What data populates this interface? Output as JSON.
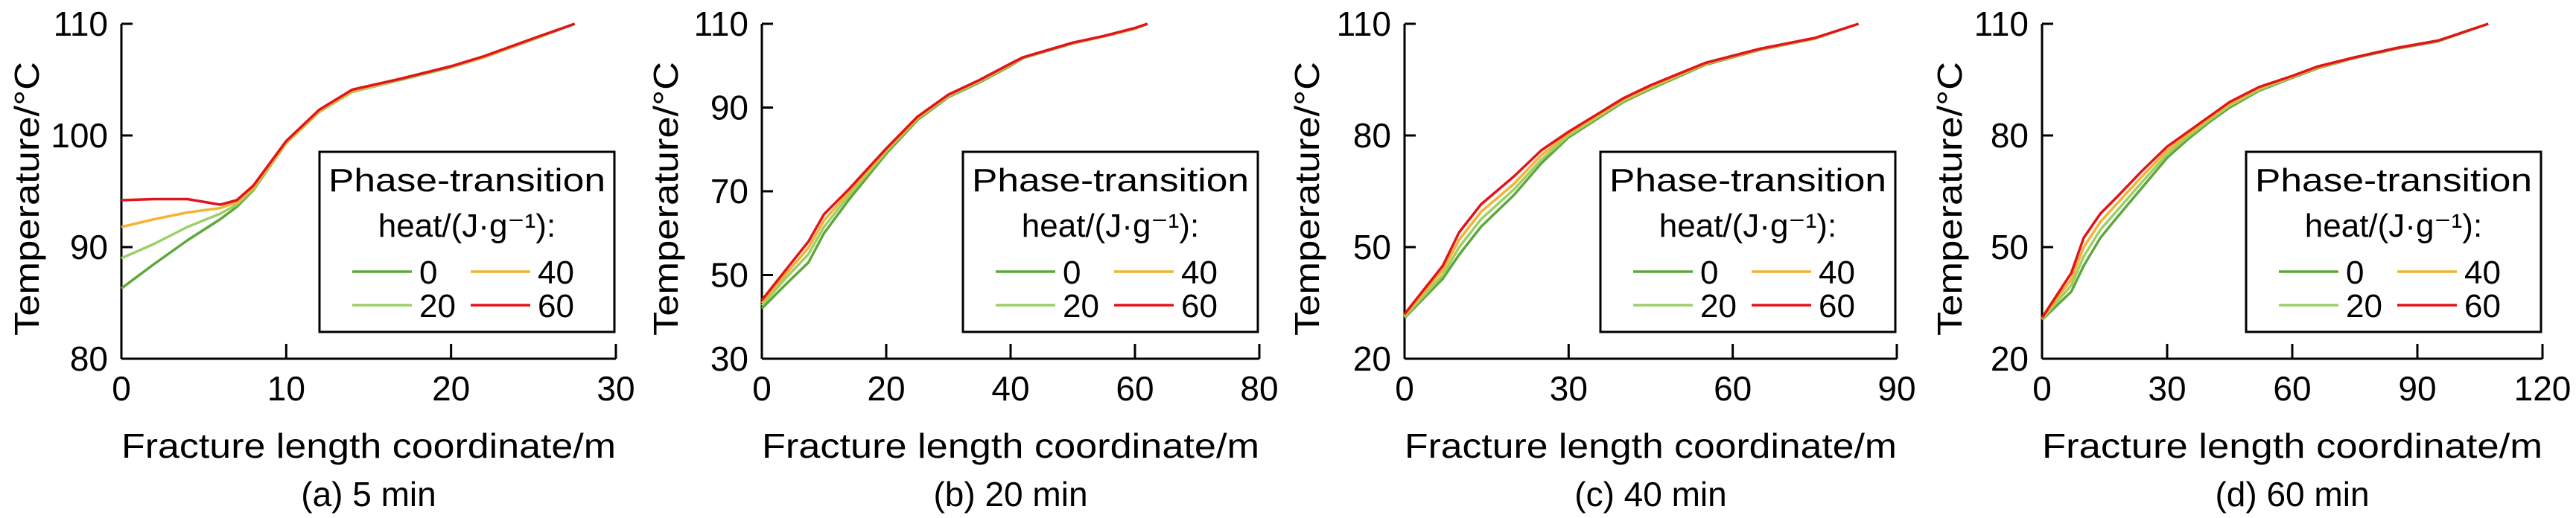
{
  "chart_data": {
    "type": "line",
    "ylabel": "Temperature/°C",
    "xlabel": "Fracture length coordinate/m",
    "legend": {
      "title_line1": "Phase-transition",
      "title_line2": "heat/(J·g⁻¹):",
      "placement": "lower-right",
      "entries": [
        "0",
        "40",
        "20",
        "60"
      ]
    },
    "series_names": [
      "0",
      "20",
      "40",
      "60"
    ],
    "colors": {
      "0": "#5ea83b",
      "20": "#9ccf69",
      "40": "#f4b332",
      "60": "#e1141c"
    },
    "panels": [
      {
        "caption": "(a) 5 min",
        "xlim": [
          0,
          30
        ],
        "ylim": [
          80,
          110
        ],
        "xticks": [
          0,
          10,
          20,
          30
        ],
        "yticks": [
          80,
          90,
          100,
          110
        ],
        "x": [
          0,
          2,
          4,
          6,
          7,
          8,
          10,
          12,
          14,
          17,
          20,
          22,
          25,
          27.5
        ],
        "series": [
          {
            "name": "0",
            "values": [
              86.3,
              88.5,
              90.6,
              92.5,
              93.6,
              95.1,
              99.3,
              102.1,
              103.9,
              105,
              106.1,
              107,
              108.6,
              110
            ]
          },
          {
            "name": "20",
            "values": [
              89,
              90.3,
              91.8,
              93,
              93.8,
              95.2,
              99.3,
              102.1,
              103.9,
              105,
              106.1,
              107,
              108.6,
              110
            ]
          },
          {
            "name": "40",
            "values": [
              91.8,
              92.5,
              93.1,
              93.5,
              94.0,
              95.3,
              99.4,
              102.2,
              104,
              105.1,
              106.2,
              107,
              108.7,
              110
            ]
          },
          {
            "name": "60",
            "values": [
              94.2,
              94.3,
              94.3,
              93.8,
              94.2,
              95.5,
              99.5,
              102.3,
              104.1,
              105.1,
              106.2,
              107.1,
              108.7,
              110
            ]
          }
        ]
      },
      {
        "caption": "(b) 20 min",
        "xlim": [
          0,
          80
        ],
        "ylim": [
          30,
          110
        ],
        "xticks": [
          0,
          20,
          40,
          60,
          80
        ],
        "yticks": [
          30,
          50,
          70,
          90,
          110
        ],
        "x": [
          0,
          4,
          7.5,
          10,
          14,
          20,
          25,
          30,
          35,
          40,
          42,
          50,
          55,
          60,
          62
        ],
        "series": [
          {
            "name": "0",
            "values": [
              42,
              48,
              53,
              60,
              68,
              79,
              87,
              92.5,
              96,
              100,
              101.8,
              105.3,
              107,
              108.8,
              110
            ]
          },
          {
            "name": "20",
            "values": [
              42.7,
              49.5,
              55,
              61.5,
              69,
              79.5,
              87.3,
              92.7,
              96.2,
              100.2,
              101.9,
              105.4,
              107,
              108.8,
              110
            ]
          },
          {
            "name": "40",
            "values": [
              43.3,
              50.5,
              56.5,
              63,
              69.8,
              79.8,
              87.5,
              92.9,
              96.4,
              100.3,
              102,
              105.4,
              107,
              108.9,
              110
            ]
          },
          {
            "name": "60",
            "values": [
              44,
              51.5,
              58,
              64.5,
              70.5,
              80.2,
              87.8,
              93.1,
              96.6,
              100.5,
              102,
              105.5,
              107.1,
              109,
              110
            ]
          }
        ]
      },
      {
        "caption": "(c) 40 min",
        "xlim": [
          0,
          90
        ],
        "ylim": [
          20,
          110
        ],
        "xticks": [
          0,
          30,
          60,
          90
        ],
        "yticks": [
          20,
          50,
          80,
          110
        ],
        "x": [
          0,
          7,
          10,
          14,
          20,
          25,
          30,
          40,
          45,
          55,
          65,
          75,
          83
        ],
        "series": [
          {
            "name": "0",
            "values": [
              31,
              41.5,
              48,
              55.5,
              64,
              72.5,
              79.5,
              89,
              92.5,
              99,
              103,
              106,
              110
            ]
          },
          {
            "name": "20",
            "values": [
              31.3,
              42.5,
              50,
              57.5,
              65.5,
              73.5,
              80,
              89.3,
              92.8,
              99.2,
              103.1,
              106,
              110
            ]
          },
          {
            "name": "40",
            "values": [
              31.6,
              43.8,
              52,
              59.5,
              67,
              74.7,
              80.5,
              89.6,
              93.1,
              99.3,
              103.2,
              106.1,
              110
            ]
          },
          {
            "name": "60",
            "values": [
              32,
              45,
              54,
              61.5,
              69,
              76,
              81,
              90,
              93.5,
              99.5,
              103.3,
              106.2,
              110
            ]
          }
        ]
      },
      {
        "caption": "(d) 60 min",
        "xlim": [
          0,
          120
        ],
        "ylim": [
          20,
          110
        ],
        "xticks": [
          0,
          30,
          60,
          90,
          120
        ],
        "yticks": [
          20,
          50,
          80,
          110
        ],
        "x": [
          0,
          7,
          10,
          14,
          18,
          24,
          30,
          35,
          40,
          45,
          52,
          60,
          66,
          75,
          85,
          95,
          107
        ],
        "series": [
          {
            "name": "0",
            "values": [
              30.5,
              38,
              45,
              52.5,
              58,
              66,
              74,
              79,
              83.5,
              87.5,
              92,
              95.5,
              98,
              100.8,
              103.3,
              105.3,
              110
            ]
          },
          {
            "name": "20",
            "values": [
              30.7,
              39.7,
              47.5,
              54.7,
              59.8,
              67.5,
              75,
              79.7,
              84,
              88,
              92.3,
              95.7,
              98.2,
              100.9,
              103.4,
              105.4,
              110
            ]
          },
          {
            "name": "40",
            "values": [
              30.8,
              41.3,
              50,
              56.8,
              61.7,
              69,
              76,
              80.3,
              84.5,
              88.5,
              92.7,
              95.8,
              98.3,
              101,
              103.5,
              105.5,
              110
            ]
          },
          {
            "name": "60",
            "values": [
              31,
              43,
              52.5,
              59,
              63.5,
              70.5,
              77,
              81,
              85,
              89,
              93,
              96,
              98.5,
              101,
              103.5,
              105.5,
              110
            ]
          }
        ]
      }
    ]
  }
}
